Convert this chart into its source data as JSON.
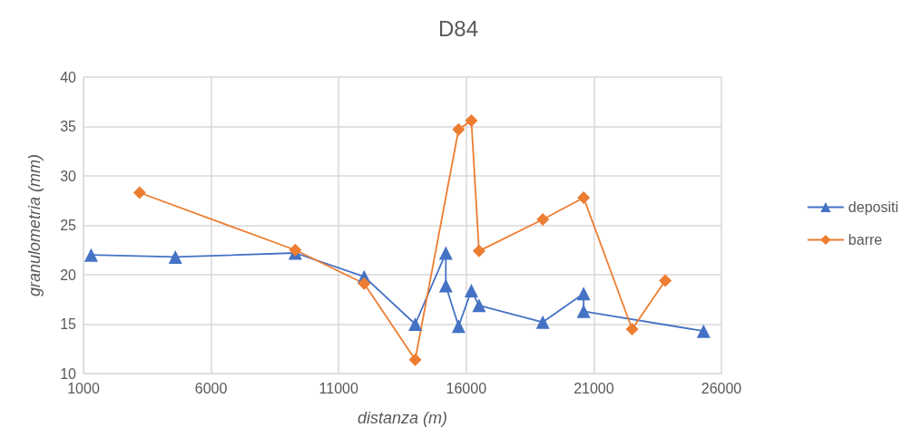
{
  "chart_data": {
    "type": "line",
    "title": "D84",
    "xlabel": "distanza (m)",
    "ylabel": "granulometria (mm)",
    "xlim": [
      1000,
      26000
    ],
    "xticks": [
      1000,
      6000,
      11000,
      16000,
      21000,
      26000
    ],
    "ylim": [
      10,
      40
    ],
    "yticks": [
      10,
      15,
      20,
      25,
      30,
      35,
      40
    ],
    "grid": true,
    "legend": "right",
    "series": [
      {
        "name": "depositi",
        "color": "#4472c4",
        "marker": "triangle",
        "x": [
          1300,
          4600,
          9300,
          12000,
          14000,
          15200,
          15200,
          15700,
          16200,
          16500,
          19000,
          20600,
          20600,
          25300
        ],
        "values": [
          22.0,
          21.8,
          22.2,
          19.8,
          15.0,
          22.2,
          18.9,
          14.8,
          18.4,
          16.9,
          15.2,
          18.1,
          16.3,
          14.3
        ]
      },
      {
        "name": "barre",
        "color": "#ed7d31",
        "marker": "diamond",
        "x": [
          3200,
          9300,
          12000,
          14000,
          15700,
          16200,
          16500,
          19000,
          20600,
          22500,
          23800
        ],
        "values": [
          28.3,
          22.5,
          19.1,
          11.4,
          34.7,
          35.6,
          22.4,
          25.6,
          27.8,
          14.5,
          19.4
        ]
      }
    ]
  }
}
